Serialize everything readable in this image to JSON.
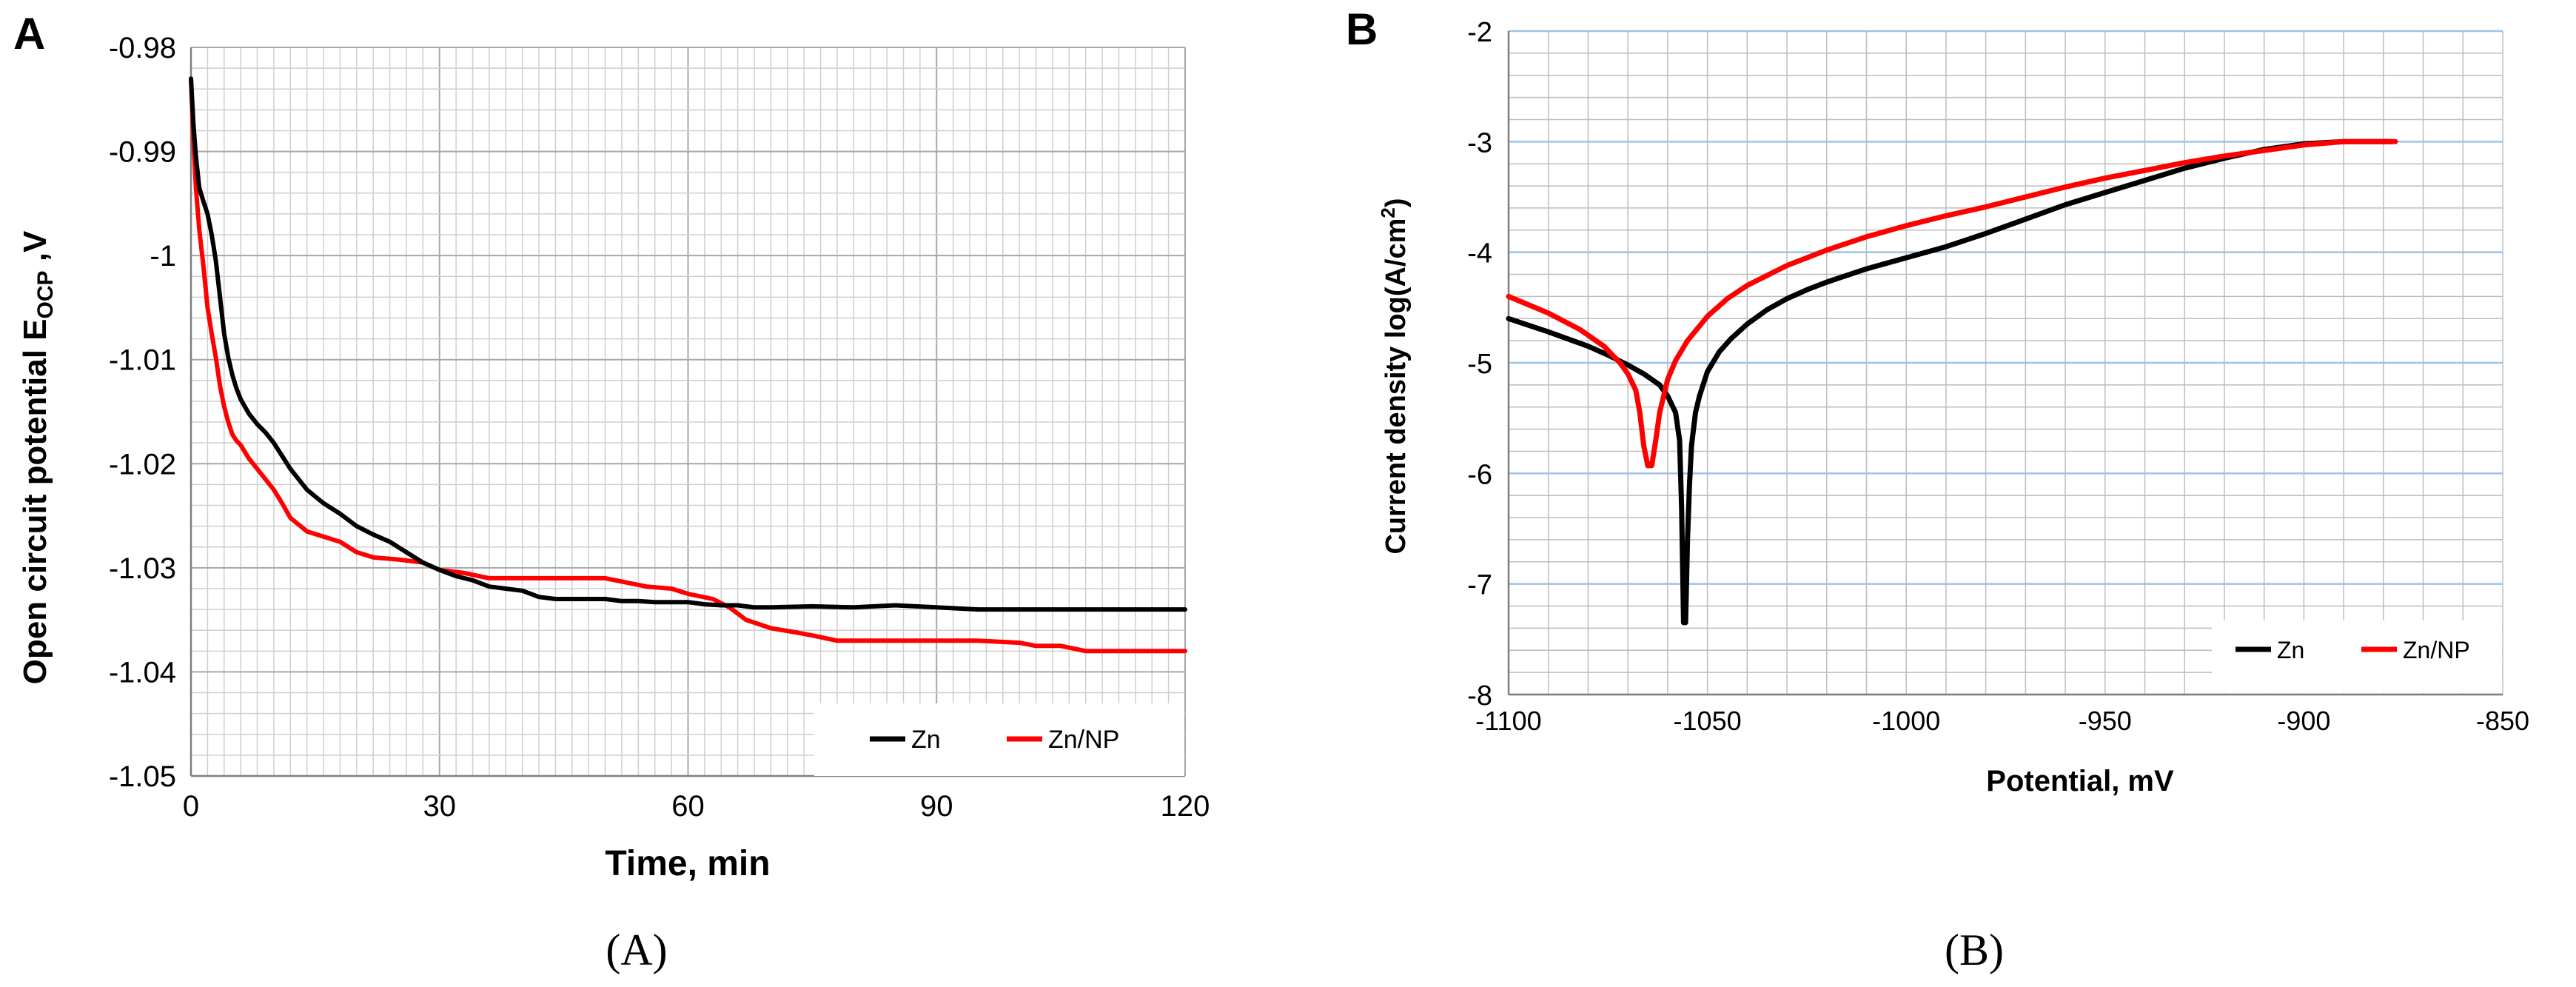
{
  "colors": {
    "zn": "#000000",
    "zn_np": "#ff0000"
  },
  "chart_data": [
    {
      "panel": "A",
      "type": "line",
      "title": "",
      "xlabel": "Time, min",
      "ylabel_main": "Open circuit potential E",
      "ylabel_sub": "OCP",
      "ylabel_tail": " ,V",
      "xlim": [
        0,
        120
      ],
      "ylim": [
        -1.05,
        -0.98
      ],
      "xticks": [
        "0",
        "30",
        "60",
        "90",
        "120"
      ],
      "yticks": [
        "-0.98",
        "-0.99",
        "-1",
        "-1.01",
        "-1.02",
        "-1.03",
        "-1.04",
        "-1.05"
      ],
      "legend": [
        "Zn",
        "Zn/NP"
      ],
      "legend_position": "bottom-right",
      "caption": "(A)",
      "series": [
        {
          "name": "Zn",
          "x": [
            0,
            0.3,
            0.6,
            1,
            1.5,
            2,
            2.5,
            3,
            3.5,
            4,
            4.5,
            5,
            5.5,
            6,
            6.5,
            7,
            8,
            9,
            10,
            12,
            14,
            16,
            18,
            20,
            22,
            24,
            26,
            28,
            30,
            32,
            34,
            36,
            38,
            40,
            42,
            44,
            46,
            48,
            50,
            52,
            54,
            56,
            58,
            60,
            62,
            64,
            66,
            68,
            70,
            75,
            80,
            85,
            90,
            95,
            100,
            105,
            110,
            115,
            120
          ],
          "y": [
            -0.983,
            -0.9875,
            -0.9905,
            -0.9935,
            -0.9948,
            -0.996,
            -0.998,
            -1.0005,
            -1.004,
            -1.0075,
            -1.0098,
            -1.0115,
            -1.0128,
            -1.0138,
            -1.0145,
            -1.0152,
            -1.0162,
            -1.017,
            -1.018,
            -1.0205,
            -1.0225,
            -1.0238,
            -1.0248,
            -1.026,
            -1.0268,
            -1.0275,
            -1.0285,
            -1.0295,
            -1.0302,
            -1.0308,
            -1.0312,
            -1.0318,
            -1.032,
            -1.0322,
            -1.0328,
            -1.033,
            -1.033,
            -1.033,
            -1.033,
            -1.0332,
            -1.0332,
            -1.0333,
            -1.0333,
            -1.0333,
            -1.0335,
            -1.0336,
            -1.0336,
            -1.0338,
            -1.0338,
            -1.0337,
            -1.0338,
            -1.0336,
            -1.0338,
            -1.034,
            -1.034,
            -1.034,
            -1.034,
            -1.034,
            -1.034
          ]
        },
        {
          "name": "Zn/NP",
          "x": [
            0,
            0.3,
            0.6,
            1,
            1.5,
            2,
            2.5,
            3,
            3.5,
            4,
            4.5,
            5,
            5.5,
            6,
            7,
            8,
            9,
            10,
            11,
            12,
            14,
            16,
            18,
            20,
            22,
            25,
            28,
            30,
            33,
            36,
            40,
            45,
            50,
            55,
            58,
            60,
            63,
            65,
            67,
            70,
            73,
            75,
            78,
            80,
            85,
            90,
            95,
            100,
            102,
            105,
            108,
            110,
            115,
            120
          ],
          "y": [
            -0.983,
            -0.989,
            -0.9935,
            -0.9975,
            -1.001,
            -1.005,
            -1.0075,
            -1.0098,
            -1.0125,
            -1.0145,
            -1.016,
            -1.0172,
            -1.0178,
            -1.0182,
            -1.0195,
            -1.0205,
            -1.0215,
            -1.0225,
            -1.0238,
            -1.0252,
            -1.0265,
            -1.027,
            -1.0275,
            -1.0285,
            -1.029,
            -1.0292,
            -1.0295,
            -1.0302,
            -1.0305,
            -1.031,
            -1.031,
            -1.031,
            -1.031,
            -1.0318,
            -1.032,
            -1.0325,
            -1.033,
            -1.0338,
            -1.035,
            -1.0358,
            -1.0362,
            -1.0365,
            -1.037,
            -1.037,
            -1.037,
            -1.037,
            -1.037,
            -1.0372,
            -1.0375,
            -1.0375,
            -1.038,
            -1.038,
            -1.038,
            -1.038
          ]
        }
      ]
    },
    {
      "panel": "B",
      "type": "line",
      "title": "",
      "xlabel": "Potential, mV",
      "ylabel": "Current density log(A/cm",
      "ylabel_sup": "2",
      "ylabel_tail": ")",
      "xlim": [
        -1100,
        -850
      ],
      "ylim": [
        -8,
        -2
      ],
      "xticks": [
        "-1100",
        "-1050",
        "-1000",
        "-950",
        "-900",
        "-850"
      ],
      "yticks": [
        "-2",
        "-3",
        "-4",
        "-5",
        "-6",
        "-7",
        "-8"
      ],
      "legend": [
        "Zn",
        "Zn/NP"
      ],
      "legend_position": "bottom-right",
      "caption": "(B)",
      "series": [
        {
          "name": "Zn",
          "x": [
            -1100,
            -1090,
            -1080,
            -1075,
            -1070,
            -1066,
            -1062,
            -1060,
            -1058,
            -1057,
            -1056.5,
            -1056,
            -1055.5,
            -1055,
            -1054.5,
            -1054,
            -1053,
            -1052,
            -1050,
            -1047,
            -1044,
            -1040,
            -1035,
            -1030,
            -1025,
            -1020,
            -1010,
            -1000,
            -990,
            -980,
            -970,
            -960,
            -950,
            -940,
            -930,
            -920,
            -910,
            -900,
            -890,
            -880,
            -878
          ],
          "y": [
            -4.6,
            -4.72,
            -4.85,
            -4.93,
            -5.02,
            -5.1,
            -5.2,
            -5.3,
            -5.45,
            -5.7,
            -6.3,
            -7.35,
            -7.35,
            -6.6,
            -6.1,
            -5.75,
            -5.45,
            -5.3,
            -5.08,
            -4.9,
            -4.78,
            -4.65,
            -4.52,
            -4.42,
            -4.34,
            -4.27,
            -4.15,
            -4.05,
            -3.95,
            -3.83,
            -3.7,
            -3.57,
            -3.46,
            -3.35,
            -3.24,
            -3.15,
            -3.07,
            -3.02,
            -3.0,
            -3.0,
            -3.0
          ]
        },
        {
          "name": "Zn/NP",
          "x": [
            -1100,
            -1090,
            -1082,
            -1076,
            -1072,
            -1070,
            -1068,
            -1067,
            -1066,
            -1065,
            -1064,
            -1063,
            -1062,
            -1061,
            -1060,
            -1058,
            -1055,
            -1050,
            -1045,
            -1040,
            -1030,
            -1020,
            -1010,
            -1000,
            -990,
            -980,
            -970,
            -960,
            -950,
            -940,
            -930,
            -920,
            -910,
            -900,
            -890,
            -880,
            -877
          ],
          "y": [
            -4.4,
            -4.55,
            -4.7,
            -4.85,
            -5.0,
            -5.1,
            -5.25,
            -5.45,
            -5.75,
            -5.93,
            -5.93,
            -5.7,
            -5.45,
            -5.3,
            -5.15,
            -4.98,
            -4.8,
            -4.58,
            -4.42,
            -4.3,
            -4.12,
            -3.98,
            -3.86,
            -3.76,
            -3.67,
            -3.59,
            -3.5,
            -3.41,
            -3.33,
            -3.26,
            -3.19,
            -3.13,
            -3.08,
            -3.03,
            -3.0,
            -3.0,
            -3.0
          ]
        }
      ]
    }
  ]
}
